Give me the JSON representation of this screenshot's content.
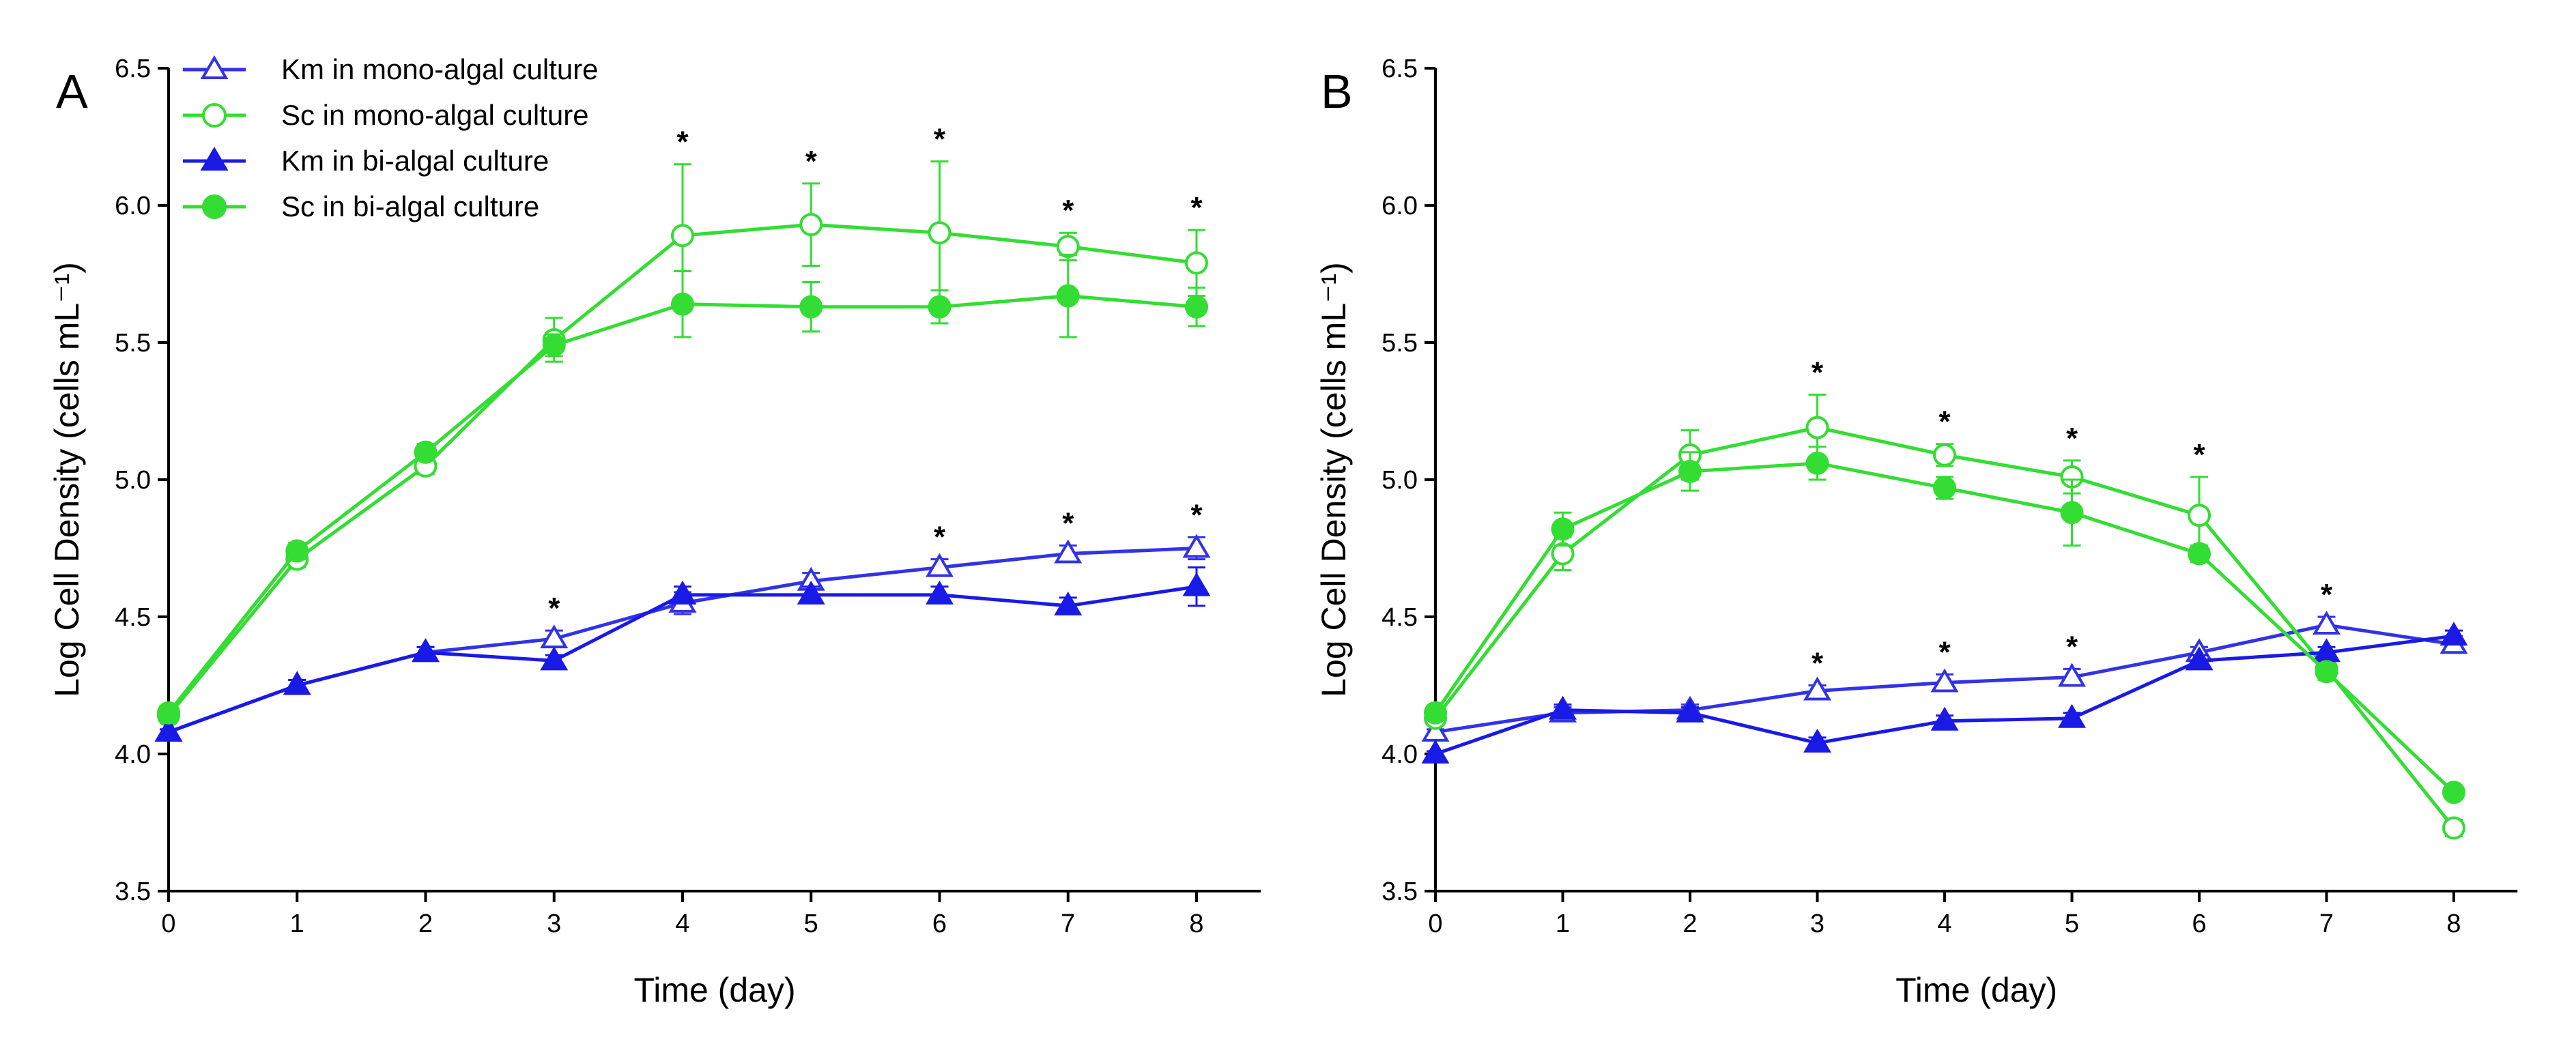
{
  "chart_data": [
    {
      "type": "line",
      "panel_label": "A",
      "xlabel": "Time (day)",
      "ylabel": "Log Cell Density (cells mL⁻¹)",
      "xlim": [
        0,
        8.5
      ],
      "ylim": [
        3.5,
        6.5
      ],
      "x": [
        0,
        1,
        2,
        3,
        4,
        5,
        6,
        7,
        8
      ],
      "x_ticks": [
        "0",
        "1",
        "2",
        "3",
        "4",
        "5",
        "6",
        "7",
        "8"
      ],
      "y_ticks": [
        "3.5",
        "4.0",
        "4.5",
        "5.0",
        "5.5",
        "6.0",
        "6.5"
      ],
      "grid": false,
      "legend_position": "top-left",
      "significance_marker": "*",
      "significant_days": [
        3,
        4,
        5,
        6,
        7,
        8
      ],
      "series": [
        {
          "name": "Km in mono-algal culture",
          "color": "#3232e6",
          "marker": "open-triangle",
          "values": [
            4.08,
            4.25,
            4.37,
            4.42,
            4.55,
            4.63,
            4.68,
            4.73,
            4.75
          ],
          "errors": [
            0.01,
            0.02,
            0.02,
            0.03,
            0.04,
            0.03,
            0.03,
            0.03,
            0.04
          ]
        },
        {
          "name": "Sc in mono-algal culture",
          "color": "#33dd33",
          "marker": "open-circle",
          "values": [
            4.14,
            4.71,
            5.05,
            5.51,
            5.89,
            5.93,
            5.9,
            5.85,
            5.79
          ],
          "errors": [
            0.02,
            0.03,
            0.03,
            0.08,
            0.26,
            0.15,
            0.26,
            0.05,
            0.12
          ]
        },
        {
          "name": "Km in bi-algal culture",
          "color": "#1a1ae6",
          "marker": "filled-triangle",
          "values": [
            4.08,
            4.25,
            4.37,
            4.34,
            4.58,
            4.58,
            4.58,
            4.54,
            4.61
          ],
          "errors": [
            0.01,
            0.02,
            0.02,
            0.02,
            0.03,
            0.03,
            0.03,
            0.03,
            0.07
          ]
        },
        {
          "name": "Sc in bi-algal culture",
          "color": "#33dd33",
          "marker": "filled-circle",
          "values": [
            4.15,
            4.74,
            5.1,
            5.49,
            5.64,
            5.63,
            5.63,
            5.67,
            5.63
          ],
          "errors": [
            0.02,
            0.03,
            0.03,
            0.04,
            0.12,
            0.09,
            0.06,
            0.15,
            0.07
          ]
        }
      ]
    },
    {
      "type": "line",
      "panel_label": "B",
      "xlabel": "Time (day)",
      "ylabel": "Log Cell Density (cells mL⁻¹)",
      "xlim": [
        0,
        8.5
      ],
      "ylim": [
        3.5,
        6.5
      ],
      "x": [
        0,
        1,
        2,
        3,
        4,
        5,
        6,
        7,
        8
      ],
      "x_ticks": [
        "0",
        "1",
        "2",
        "3",
        "4",
        "5",
        "6",
        "7",
        "8"
      ],
      "y_ticks": [
        "3.5",
        "4.0",
        "4.5",
        "5.0",
        "5.5",
        "6.0",
        "6.5"
      ],
      "grid": false,
      "significance_marker": "*",
      "significant_days_upper": [
        3,
        4,
        5,
        6,
        7
      ],
      "significant_days_lower": [
        3,
        4,
        5
      ],
      "series": [
        {
          "name": "Km in mono-algal culture",
          "color": "#3232e6",
          "marker": "open-triangle",
          "values": [
            4.08,
            4.15,
            4.16,
            4.23,
            4.26,
            4.28,
            4.37,
            4.47,
            4.4
          ],
          "errors": [
            0.01,
            0.02,
            0.02,
            0.02,
            0.03,
            0.03,
            0.02,
            0.03,
            0.03
          ]
        },
        {
          "name": "Sc in mono-algal culture",
          "color": "#33dd33",
          "marker": "open-circle",
          "values": [
            4.13,
            4.73,
            5.09,
            5.19,
            5.09,
            5.01,
            4.87,
            4.31,
            3.73
          ],
          "errors": [
            0.02,
            0.06,
            0.09,
            0.12,
            0.04,
            0.06,
            0.14,
            0.03,
            0.03
          ]
        },
        {
          "name": "Km in bi-algal culture",
          "color": "#1a1ae6",
          "marker": "filled-triangle",
          "values": [
            4.0,
            4.16,
            4.15,
            4.04,
            4.12,
            4.13,
            4.34,
            4.37,
            4.43
          ],
          "errors": [
            0.01,
            0.02,
            0.02,
            0.02,
            0.02,
            0.02,
            0.02,
            0.02,
            0.02
          ]
        },
        {
          "name": "Sc in bi-algal culture",
          "color": "#33dd33",
          "marker": "filled-circle",
          "values": [
            4.15,
            4.82,
            5.03,
            5.06,
            4.97,
            4.88,
            4.73,
            4.3,
            3.86
          ],
          "errors": [
            0.02,
            0.06,
            0.07,
            0.06,
            0.04,
            0.12,
            0.03,
            0.03,
            0.02
          ]
        }
      ]
    }
  ]
}
